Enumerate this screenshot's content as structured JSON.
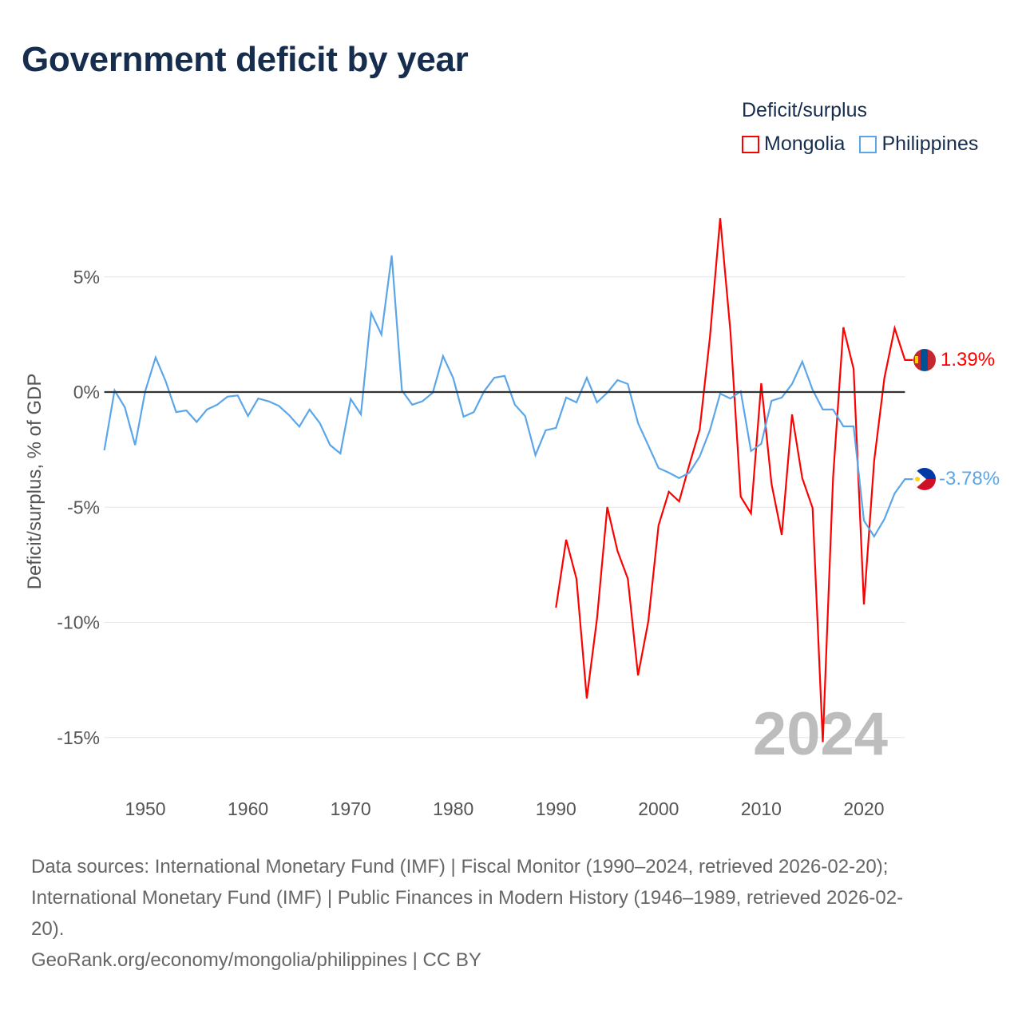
{
  "title": "Government deficit by year",
  "legend": {
    "title": "Deficit/surplus"
  },
  "watermark_year": "2024",
  "end_labels": {
    "mongolia": "1.39%",
    "philippines": "-3.78%"
  },
  "source_lines": [
    "Data sources: International Monetary Fund (IMF) | Fiscal Monitor (1990–2024, retrieved 2026-02-20);",
    "International Monetary Fund (IMF) | Public Finances in Modern History (1946–1989, retrieved 2026-02-",
    "20).",
    "GeoRank.org/economy/mongolia/philippines | CC BY"
  ],
  "chart_data": {
    "type": "line",
    "title": "Government deficit by year",
    "xlabel": "",
    "ylabel": "Deficit/surplus, % of GDP",
    "xlim": [
      1946,
      2024
    ],
    "ylim": [
      -17.5,
      8
    ],
    "x_ticks": [
      1950,
      1960,
      1970,
      1980,
      1990,
      2000,
      2010,
      2020
    ],
    "y_ticks": [
      5,
      0,
      -5,
      -10,
      -15
    ],
    "y_tick_labels": [
      "5%",
      "0%",
      "-5%",
      "-10%",
      "-15%"
    ],
    "grid": true,
    "legend_position": "top-right",
    "series": [
      {
        "name": "Mongolia",
        "color": "#ff0000",
        "start_year": 1990,
        "values": [
          -9.36,
          -6.41,
          -8.11,
          -13.3,
          -9.84,
          -4.99,
          -6.9,
          -8.1,
          -12.3,
          -9.95,
          -5.79,
          -4.33,
          -4.75,
          -3.15,
          -1.63,
          2.36,
          7.55,
          2.63,
          -4.54,
          -5.27,
          0.38,
          -3.99,
          -6.2,
          -0.97,
          -3.74,
          -5.03,
          -15.2,
          -3.7,
          2.81,
          1.0,
          -9.22,
          -3.0,
          0.62,
          2.77,
          1.39
        ]
      },
      {
        "name": "Philippines",
        "color": "#5ba6e9",
        "start_year": 1946,
        "values": [
          -2.53,
          0.07,
          -0.66,
          -2.3,
          0.05,
          1.5,
          0.45,
          -0.87,
          -0.8,
          -1.3,
          -0.76,
          -0.55,
          -0.2,
          -0.15,
          -1.04,
          -0.28,
          -0.4,
          -0.6,
          -1.0,
          -1.5,
          -0.76,
          -1.35,
          -2.3,
          -2.67,
          -0.3,
          -0.97,
          3.43,
          2.5,
          5.93,
          0.07,
          -0.55,
          -0.4,
          -0.03,
          1.56,
          0.6,
          -1.07,
          -0.87,
          0.03,
          0.62,
          0.7,
          -0.55,
          -1.04,
          -2.74,
          -1.66,
          -1.56,
          -0.24,
          -0.45,
          0.62,
          -0.45,
          -0.03,
          0.52,
          0.35,
          -1.35,
          -2.32,
          -3.3,
          -3.5,
          -3.74,
          -3.5,
          -2.8,
          -1.66,
          -0.07,
          -0.28,
          0.03,
          -2.56,
          -2.25,
          -0.38,
          -0.24,
          0.35,
          1.32,
          0.1,
          -0.76,
          -0.76,
          -1.49,
          -1.49,
          -5.58,
          -6.27,
          -5.51,
          -4.4,
          -3.78
        ]
      }
    ]
  }
}
